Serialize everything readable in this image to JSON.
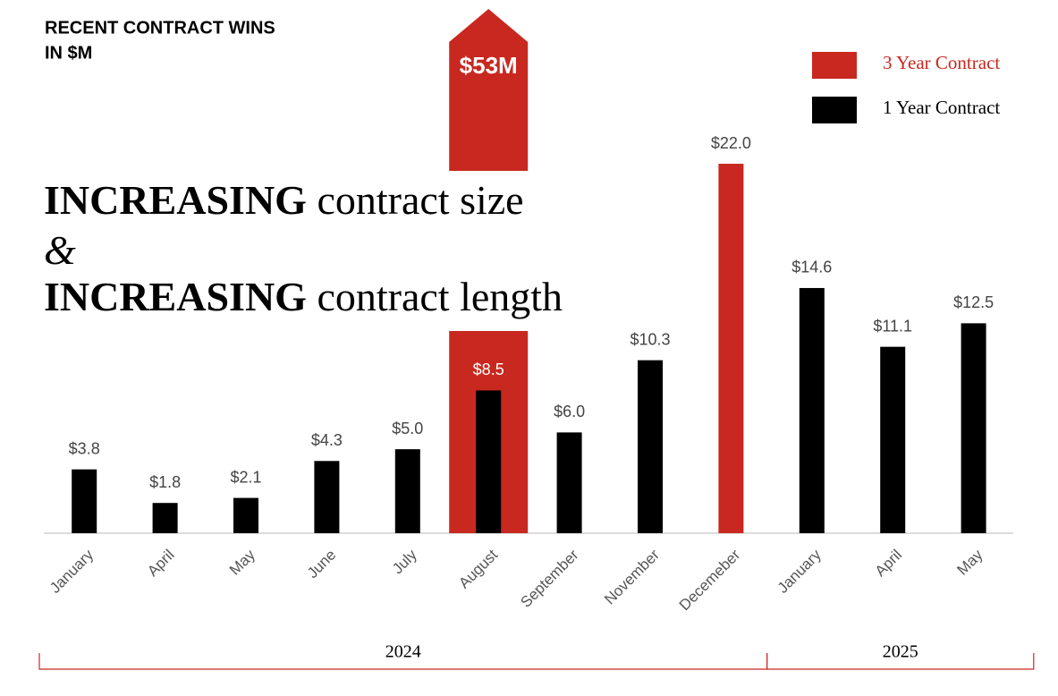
{
  "chart_data": {
    "type": "bar",
    "title": [
      "RECENT CONTRACT WINS",
      "IN $M"
    ],
    "annotation": [
      [
        {
          "text": "INCREASING",
          "bold": true
        },
        {
          "text": " contract size",
          "bold": false
        }
      ],
      [
        {
          "text": "&",
          "bold": false
        }
      ],
      [
        {
          "text": "INCREASING",
          "bold": true
        },
        {
          "text": " contract length",
          "bold": false
        }
      ]
    ],
    "categories": [
      "January",
      "April",
      "May",
      "June",
      "July",
      "August",
      "September",
      "November",
      "Decemeber",
      "January",
      "April",
      "May"
    ],
    "groups": [
      {
        "label": "2024",
        "span": [
          0,
          8
        ]
      },
      {
        "label": "2025",
        "span": [
          9,
          11
        ]
      }
    ],
    "series": [
      {
        "name": "3 Year Contract",
        "color": "#c8281f",
        "values": [
          null,
          null,
          null,
          null,
          null,
          53,
          null,
          null,
          22.0,
          null,
          null,
          null
        ],
        "value_labels": [
          null,
          null,
          null,
          null,
          null,
          "$53M",
          null,
          null,
          "$22.0",
          null,
          null,
          null
        ]
      },
      {
        "name": "1 Year Contract",
        "color": "#000000",
        "values": [
          3.8,
          1.8,
          2.1,
          4.3,
          5.0,
          8.5,
          6.0,
          10.3,
          null,
          14.6,
          11.1,
          12.5
        ],
        "value_labels": [
          "$3.8",
          "$1.8",
          "$2.1",
          "$4.3",
          "$5.0",
          "$8.5",
          "$6.0",
          "$10.3",
          null,
          "$14.6",
          "$11.1",
          "$12.5"
        ]
      }
    ],
    "legend": "top-right",
    "group_color": "#c8281f"
  }
}
